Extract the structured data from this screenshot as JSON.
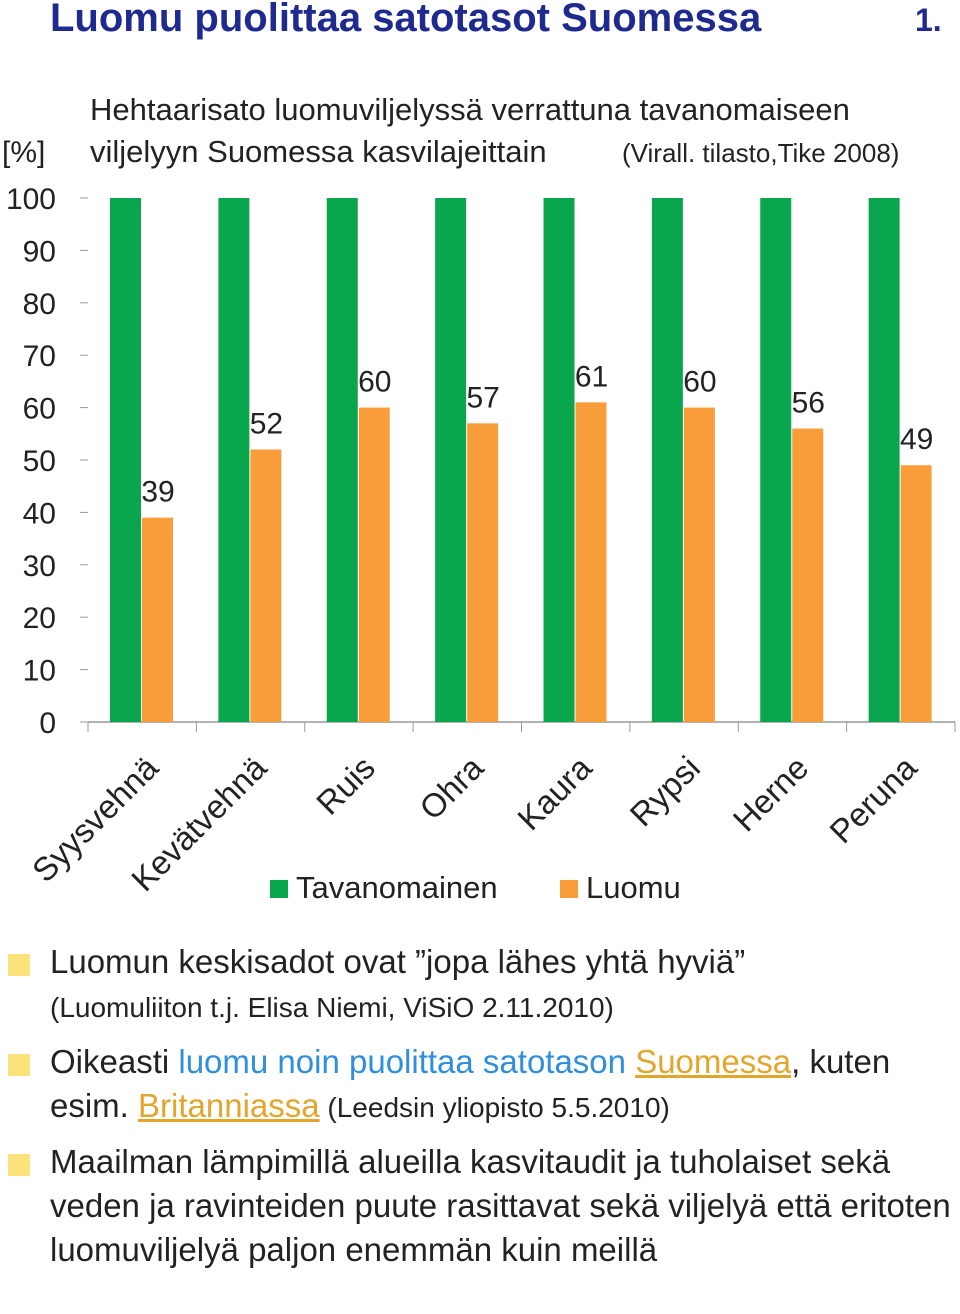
{
  "title": "Luomu puolittaa satotasot Suomessa",
  "slide_number": "1.",
  "chart_data": {
    "type": "bar",
    "title_line1": "Hehtaarisato luomuviljelyssä verrattuna tavanomaiseen",
    "title_line2": "viljelyyn Suomessa kasvilajeittain",
    "source": "(Virall. tilasto,Tike 2008)",
    "ylabel": "[%]",
    "ylim": [
      0,
      100
    ],
    "yticks": [
      0,
      10,
      20,
      30,
      40,
      50,
      60,
      70,
      80,
      90,
      100
    ],
    "categories": [
      "Syysvehnä",
      "Kevätvehnä",
      "Ruis",
      "Ohra",
      "Kaura",
      "Rypsi",
      "Herne",
      "Peruna"
    ],
    "series": [
      {
        "name": "Tavanomainen",
        "color": "#0aa64e",
        "values": [
          100,
          100,
          100,
          100,
          100,
          100,
          100,
          100
        ]
      },
      {
        "name": "Luomu",
        "color": "#f99c3a",
        "values": [
          39,
          52,
          60,
          57,
          61,
          60,
          56,
          49
        ]
      }
    ],
    "legend": "bottom"
  },
  "bullets": {
    "b1_main": "Luomun keskisadot ovat ”jopa lähes yhtä hyviä”",
    "b1_source": "(Luomuliiton t.j. Elisa Niemi, ViSiO 2.11.2010)",
    "b2_a": "Oikeasti ",
    "b2_b": "luomu noin puolittaa satotason ",
    "b2_c": "Suomessa",
    "b2_d": ", kuten esim. ",
    "b2_e": "Britanniassa",
    "b2_f": " (Leedsin yliopisto 5.5.2010)",
    "b3": "Maailman lämpimillä alueilla kasvitaudit ja tuholaiset sekä veden ja ravinteiden puute rasittavat sekä viljelyä että eritoten luomuviljelyä paljon enemmän kuin meillä"
  }
}
